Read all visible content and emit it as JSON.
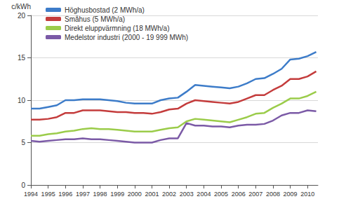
{
  "chart_data": {
    "type": "line",
    "y_label": "c/kWh",
    "x": [
      1994,
      1994.5,
      1995,
      1995.5,
      1996,
      1996.5,
      1997,
      1997.5,
      1998,
      1998.5,
      1999,
      1999.5,
      2000,
      2000.5,
      2001,
      2001.5,
      2002,
      2002.5,
      2003,
      2003.5,
      2004,
      2004.5,
      2005,
      2005.5,
      2006,
      2006.5,
      2007,
      2007.5,
      2008,
      2008.5,
      2009,
      2009.5,
      2010,
      2010.5
    ],
    "series": [
      {
        "name": "Höghusbostad (2 MWh/a)",
        "color": "#3d7cc9",
        "values": [
          9.0,
          9.0,
          9.2,
          9.4,
          10.0,
          10.0,
          10.1,
          10.1,
          10.1,
          10.0,
          9.9,
          9.7,
          9.6,
          9.6,
          9.6,
          10.0,
          10.2,
          10.3,
          11.0,
          11.8,
          11.7,
          11.6,
          11.5,
          11.4,
          11.6,
          12.0,
          12.5,
          12.6,
          13.1,
          13.7,
          14.8,
          14.9,
          15.2,
          15.7
        ]
      },
      {
        "name": "Småhus (5 MWh/a)",
        "color": "#c43c3c",
        "values": [
          7.7,
          7.7,
          7.8,
          8.0,
          8.5,
          8.5,
          8.8,
          8.8,
          8.8,
          8.7,
          8.6,
          8.6,
          8.5,
          8.5,
          8.4,
          8.6,
          8.9,
          9.0,
          9.6,
          10.0,
          9.9,
          9.8,
          9.7,
          9.6,
          9.8,
          10.2,
          10.6,
          10.6,
          11.2,
          11.7,
          12.5,
          12.5,
          12.8,
          13.4
        ]
      },
      {
        "name": "Direkt eluppvärmning (18 MWh/a)",
        "color": "#9bcc4a",
        "values": [
          5.8,
          5.8,
          6.0,
          6.1,
          6.3,
          6.4,
          6.6,
          6.7,
          6.6,
          6.6,
          6.5,
          6.4,
          6.3,
          6.3,
          6.3,
          6.5,
          6.7,
          6.8,
          7.5,
          7.8,
          7.7,
          7.6,
          7.5,
          7.4,
          7.7,
          8.0,
          8.4,
          8.5,
          9.1,
          9.6,
          10.2,
          10.2,
          10.5,
          11.0
        ]
      },
      {
        "name": "Medelstor industri (2000 - 19 999 MWh)",
        "color": "#7b5aa6",
        "values": [
          5.2,
          5.1,
          5.2,
          5.3,
          5.4,
          5.4,
          5.5,
          5.4,
          5.4,
          5.3,
          5.2,
          5.1,
          5.0,
          5.0,
          5.0,
          5.3,
          5.5,
          5.5,
          7.3,
          7.0,
          7.0,
          6.9,
          6.9,
          6.8,
          7.0,
          7.1,
          7.1,
          7.2,
          7.6,
          8.2,
          8.5,
          8.5,
          8.8,
          8.7
        ]
      }
    ],
    "xlim": [
      1994,
      2010.6
    ],
    "xticks": [
      1994,
      1995,
      1996,
      1997,
      1998,
      1999,
      2000,
      2001,
      2002,
      2003,
      2004,
      2005,
      2006,
      2007,
      2008,
      2009,
      2010
    ],
    "ylim": [
      0,
      20
    ],
    "yticks": [
      0,
      5,
      10,
      15,
      20
    ],
    "grid": true,
    "legend": "top-left"
  }
}
